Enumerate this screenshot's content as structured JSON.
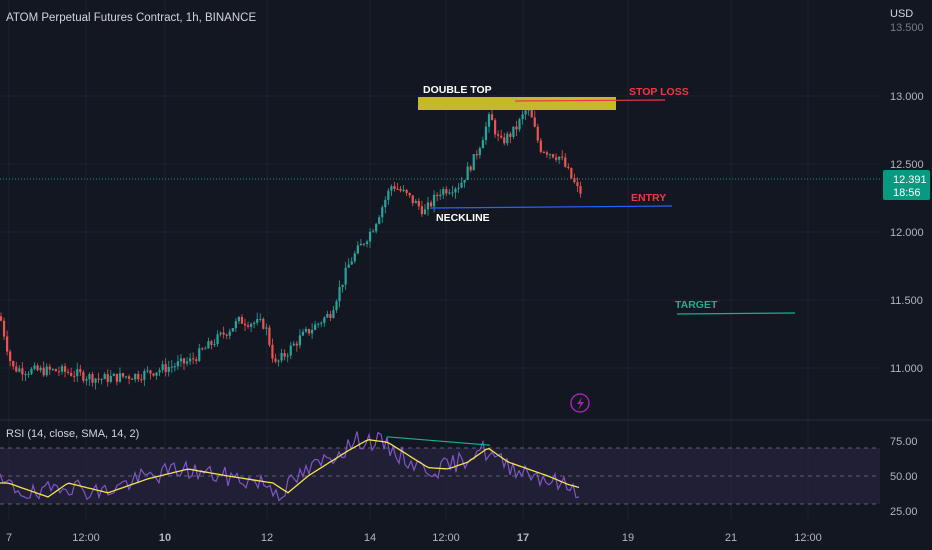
{
  "header": {
    "title": "ATOM Perpetual Futures Contract, 1h, BINANCE",
    "currency": "USD"
  },
  "colors": {
    "background": "#131722",
    "up": "#26a69a",
    "down": "#ef5350",
    "grid": "#1e222d",
    "text": "#b2b5be",
    "rsi_line": "#7e57c2",
    "rsi_sma": "#f5e350",
    "rsi_band": "#2a2545",
    "double_top_box": "#c4b82b",
    "stop_loss": "#f23645",
    "neckline": "#2962ff",
    "target": "#22ab94",
    "price_tag": "#089981"
  },
  "price_axis": {
    "ticks": [
      "13.000",
      "12.500",
      "12.000",
      "11.500",
      "11.000"
    ],
    "top_cut_label": "13.500",
    "current_price": "12.391",
    "countdown": "18:56"
  },
  "time_axis": {
    "ticks": [
      {
        "label": "7",
        "bold": false
      },
      {
        "label": "12:00",
        "bold": false
      },
      {
        "label": "10",
        "bold": true
      },
      {
        "label": "12",
        "bold": false
      },
      {
        "label": "14",
        "bold": false
      },
      {
        "label": "12:00",
        "bold": false
      },
      {
        "label": "17",
        "bold": true
      },
      {
        "label": "19",
        "bold": false
      },
      {
        "label": "21",
        "bold": false
      },
      {
        "label": "12:00",
        "bold": false
      }
    ]
  },
  "annotations": {
    "double_top": "DOUBLE TOP",
    "stop_loss": "STOP LOSS",
    "entry": "ENTRY",
    "neckline": "NECKLINE",
    "target": "TARGET"
  },
  "rsi": {
    "label": "RSI (14, close, SMA, 14, 2)",
    "ticks": [
      "75.00",
      "50.00",
      "25.00"
    ],
    "levels": {
      "upper": 70,
      "middle": 50,
      "lower": 30
    }
  },
  "chart_data": {
    "type": "candlestick",
    "price_ylim": [
      10.7,
      13.5
    ],
    "current_price": 12.391,
    "levels": {
      "stop_loss": 12.96,
      "entry": 12.19,
      "neckline": 12.19,
      "target": 11.4,
      "double_top_zone": [
        12.9,
        12.98
      ]
    },
    "price_path_anchors": [
      [
        0,
        11.38
      ],
      [
        12,
        11.0
      ],
      [
        30,
        10.98
      ],
      [
        60,
        10.98
      ],
      [
        100,
        10.92
      ],
      [
        140,
        10.95
      ],
      [
        190,
        11.05
      ],
      [
        240,
        11.35
      ],
      [
        265,
        11.32
      ],
      [
        275,
        11.02
      ],
      [
        300,
        11.22
      ],
      [
        330,
        11.4
      ],
      [
        350,
        11.78
      ],
      [
        372,
        12.02
      ],
      [
        392,
        12.35
      ],
      [
        405,
        12.28
      ],
      [
        425,
        12.15
      ],
      [
        440,
        12.3
      ],
      [
        460,
        12.35
      ],
      [
        475,
        12.55
      ],
      [
        490,
        12.85
      ],
      [
        500,
        12.65
      ],
      [
        515,
        12.75
      ],
      [
        528,
        12.92
      ],
      [
        540,
        12.62
      ],
      [
        560,
        12.55
      ],
      [
        580,
        12.28
      ],
      [
        583,
        12.36
      ]
    ],
    "rsi_ylim": [
      20,
      85
    ],
    "rsi_path_anchors": [
      [
        0,
        45
      ],
      [
        20,
        40
      ],
      [
        40,
        35
      ],
      [
        60,
        45
      ],
      [
        100,
        38
      ],
      [
        140,
        48
      ],
      [
        180,
        55
      ],
      [
        220,
        50
      ],
      [
        265,
        45
      ],
      [
        280,
        38
      ],
      [
        300,
        50
      ],
      [
        340,
        68
      ],
      [
        360,
        76
      ],
      [
        380,
        74
      ],
      [
        400,
        65
      ],
      [
        420,
        56
      ],
      [
        440,
        55
      ],
      [
        460,
        60
      ],
      [
        480,
        70
      ],
      [
        500,
        60
      ],
      [
        520,
        55
      ],
      [
        540,
        50
      ],
      [
        560,
        44
      ],
      [
        580,
        40
      ]
    ],
    "divergence_line": [
      [
        387,
        78
      ],
      [
        490,
        72
      ]
    ]
  }
}
